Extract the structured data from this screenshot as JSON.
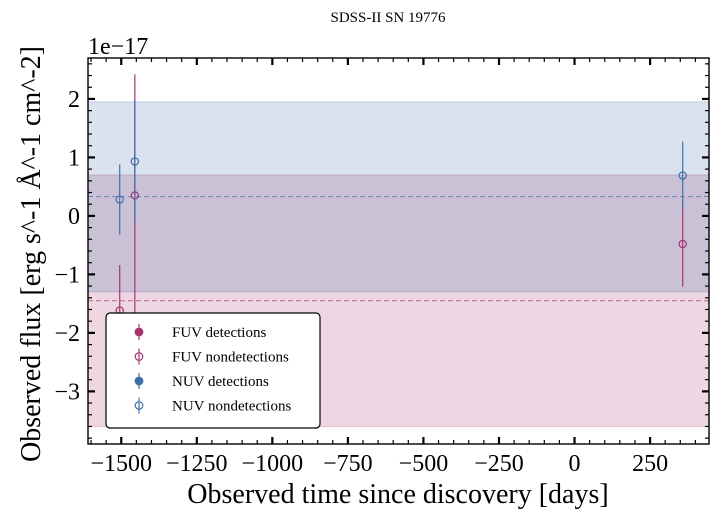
{
  "chart_data": {
    "type": "scatter",
    "title": "SDSS-II SN 19776",
    "xlabel": "Observed time since discovery [days]",
    "ylabel": "Observed flux [erg s^-1 Å^-1 cm^-2]",
    "y_offset_label": "1e−17",
    "xlim": [
      -1610,
      445
    ],
    "ylim": [
      -3.9,
      2.7
    ],
    "x_ticks": [
      -1500,
      -1250,
      -1000,
      -750,
      -500,
      -250,
      0,
      250
    ],
    "x_tick_labels": [
      "−1500",
      "−1250",
      "−1000",
      "−750",
      "−500",
      "−250",
      "0",
      "250"
    ],
    "y_ticks": [
      -3,
      -2,
      -1,
      0,
      1,
      2
    ],
    "y_tick_labels": [
      "−3",
      "−2",
      "−1",
      "0",
      "1",
      "2"
    ],
    "bands": [
      {
        "name": "FUV band",
        "center": -1.45,
        "low": -3.6,
        "high": 0.7,
        "color": "#a8326e"
      },
      {
        "name": "NUV band",
        "center": 0.33,
        "low": -1.3,
        "high": 1.95,
        "color": "#3f6fa8"
      }
    ],
    "series": [
      {
        "name": "FUV detections",
        "color": "#a8326e",
        "filled": true,
        "points": []
      },
      {
        "name": "FUV nondetections",
        "color": "#a8326e",
        "filled": false,
        "points": [
          {
            "x": -1505,
            "y": -1.62,
            "yerr": 0.78
          },
          {
            "x": -1455,
            "y": 0.35,
            "yerr": 2.07
          },
          {
            "x": 358,
            "y": -0.48,
            "yerr": 0.73
          }
        ]
      },
      {
        "name": "NUV detections",
        "color": "#3f6fa8",
        "filled": true,
        "points": []
      },
      {
        "name": "NUV nondetections",
        "color": "#3f6fa8",
        "filled": false,
        "points": [
          {
            "x": -1505,
            "y": 0.28,
            "yerr": 0.6
          },
          {
            "x": -1455,
            "y": 0.93,
            "yerr": 1.05
          },
          {
            "x": 358,
            "y": 0.69,
            "yerr": 0.58
          }
        ]
      }
    ],
    "legend_position": "lower-left"
  }
}
